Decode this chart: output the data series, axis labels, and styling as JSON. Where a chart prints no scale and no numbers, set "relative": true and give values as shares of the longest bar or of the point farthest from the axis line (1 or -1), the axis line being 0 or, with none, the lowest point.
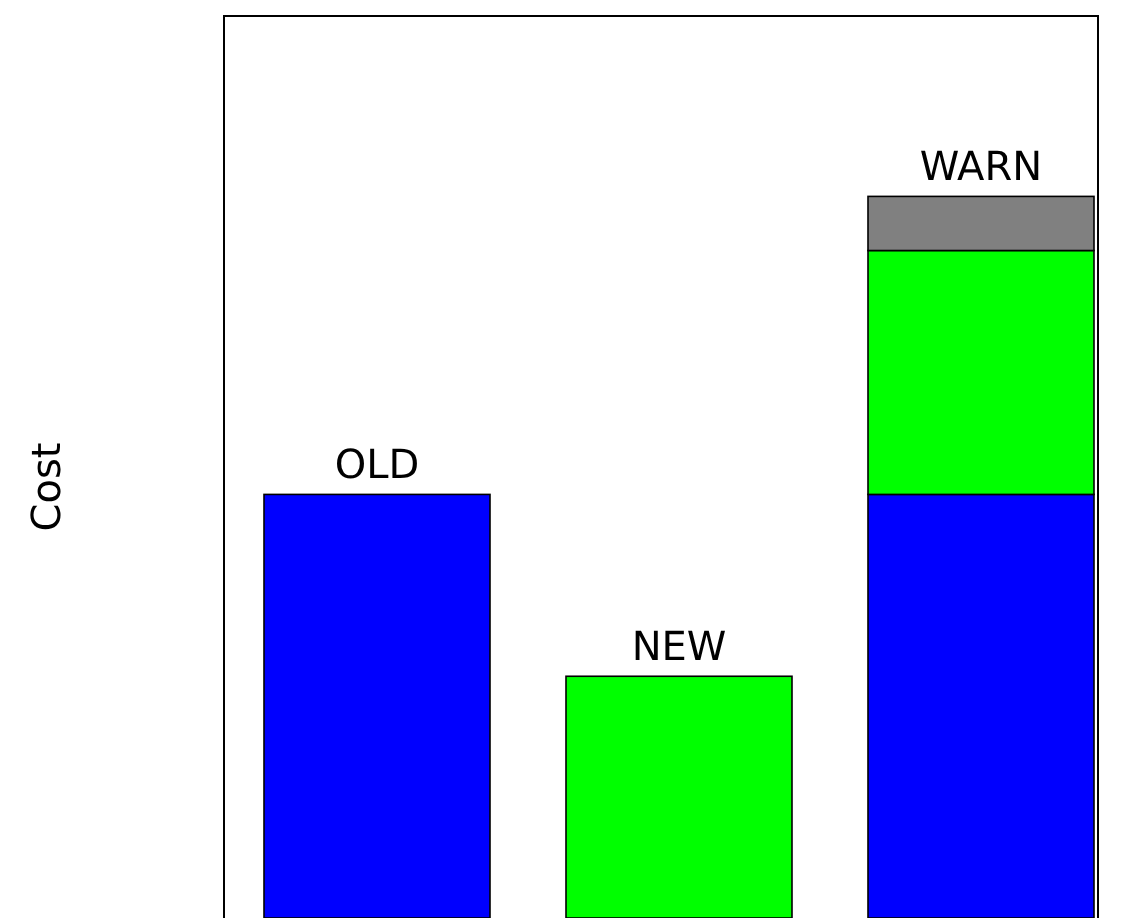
{
  "chart_data": {
    "type": "bar",
    "relative": true,
    "stacked": true,
    "ylabel": "Cost",
    "categories": [
      "OLD",
      "NEW",
      "WARN"
    ],
    "series": [
      {
        "color": "#0000ff",
        "values": [
          0.587,
          null,
          0.587
        ]
      },
      {
        "color": "#00ff00",
        "values": [
          null,
          0.335,
          0.338
        ]
      },
      {
        "color": "#808080",
        "values": [
          null,
          null,
          0.075
        ]
      }
    ]
  }
}
